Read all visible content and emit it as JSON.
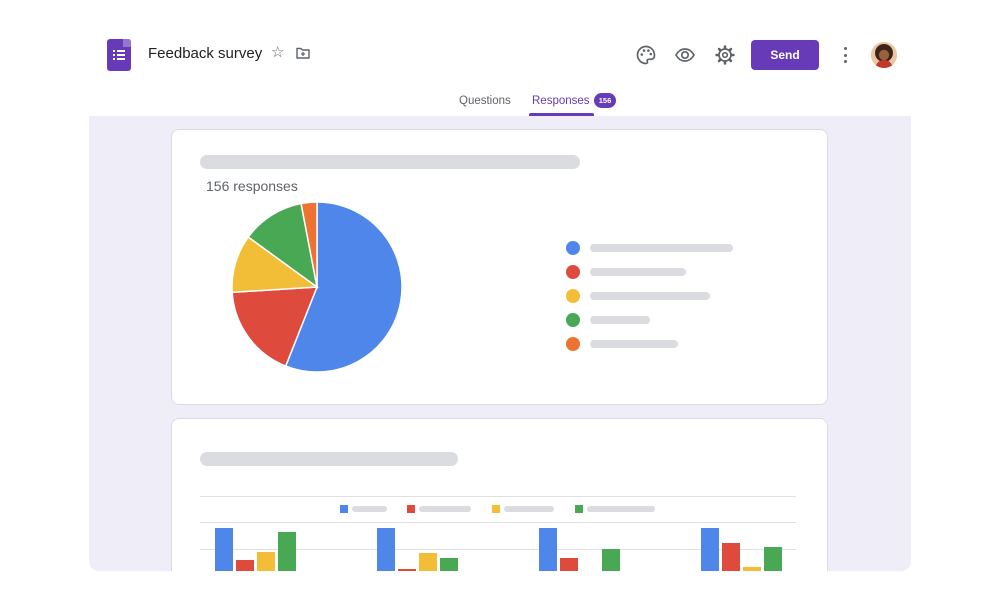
{
  "header": {
    "title": "Feedback survey",
    "send_label": "Send"
  },
  "tabs": {
    "questions_label": "Questions",
    "responses_label": "Responses",
    "responses_badge": "156"
  },
  "summary": {
    "response_count_text": "156 responses"
  },
  "colors": {
    "brand": "#673ab7",
    "blue": "#4e86ea",
    "red": "#de4b3d",
    "yellow": "#f3be37",
    "green": "#49a854",
    "orange": "#ee7333"
  },
  "icons": [
    "forms-doc-icon",
    "star-icon",
    "move-to-folder-icon",
    "palette-icon",
    "eye-preview-icon",
    "gear-icon",
    "more-vert-icon"
  ],
  "chart_data": [
    {
      "type": "pie",
      "slice_colors": [
        "#4e86ea",
        "#de4b3d",
        "#f3be37",
        "#49a854",
        "#ee7333"
      ],
      "values": [
        56,
        18,
        11,
        12,
        3
      ]
    },
    {
      "type": "bar",
      "groups": 4,
      "series_colors": [
        "#4e86ea",
        "#de4b3d",
        "#f3be37",
        "#49a854"
      ],
      "series": [
        {
          "values": [
            44,
            44,
            44,
            44
          ]
        },
        {
          "values": [
            12,
            3,
            14,
            29
          ]
        },
        {
          "values": [
            20,
            19,
            0,
            5
          ]
        },
        {
          "values": [
            40,
            14,
            23,
            25
          ]
        }
      ]
    }
  ]
}
